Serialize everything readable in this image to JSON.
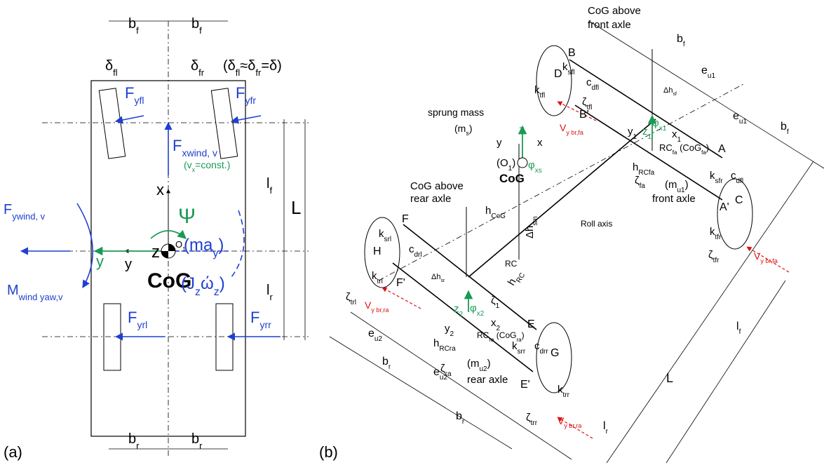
{
  "panel_a": {
    "caption": "(a)",
    "labels": {
      "bf1": [
        "b",
        "f"
      ],
      "bf2": [
        "b",
        "f"
      ],
      "br1": [
        "b",
        "r"
      ],
      "br2": [
        "b",
        "r"
      ],
      "dfl": [
        "δ",
        "fl"
      ],
      "dfr": [
        "δ",
        "fr"
      ],
      "drel": [
        "(δ",
        "fl",
        "≈δ",
        "fr",
        "=δ)"
      ],
      "fyfl": [
        "F",
        "yfl"
      ],
      "fyfr": [
        "F",
        "yfr"
      ],
      "fxw": [
        "F",
        "xwind, v"
      ],
      "vx": [
        "(v",
        "x",
        "=const.)"
      ],
      "x": [
        "x"
      ],
      "psi": [
        "Ψ"
      ],
      "z": [
        "z"
      ],
      "o1": [
        "O",
        "1"
      ],
      "may": [
        "(ma",
        "y",
        ")"
      ],
      "fyw": [
        "F",
        "ywind, v"
      ],
      "yg": [
        "y"
      ],
      "yb": [
        "y"
      ],
      "mw": [
        "M",
        "wind yaw,v"
      ],
      "cog": [
        "CoG"
      ],
      "jz": [
        "(J",
        "z",
        "ώ",
        "z",
        ")"
      ],
      "lf": [
        "l",
        "f"
      ],
      "lr": [
        "l",
        "r"
      ],
      "L": [
        "L"
      ],
      "fyrl": [
        "F",
        "yrl"
      ],
      "fyrr": [
        "F",
        "yrr"
      ]
    }
  },
  "panel_b": {
    "caption": "(b)",
    "labels": {
      "cogf1": [
        "CoG above"
      ],
      "cogf2": [
        "front axle"
      ],
      "bf1": [
        "b",
        "f"
      ],
      "bf2": [
        "b",
        "f"
      ],
      "eu1a": [
        "e",
        "u1"
      ],
      "eu1b": [
        "e",
        "u1"
      ],
      "B": [
        "B"
      ],
      "D": [
        "D"
      ],
      "ksfl": [
        "k",
        "sfl"
      ],
      "cdfl1": [
        "c",
        "dfl"
      ],
      "ktfl": [
        "k",
        "tfl"
      ],
      "ztfl": [
        "ζ",
        "tfl"
      ],
      "Bp": [
        "B'"
      ],
      "dhsf": [
        "Δh",
        "sf"
      ],
      "vfa1": [
        "V",
        "y br,fa"
      ],
      "y1": [
        "y",
        "1"
      ],
      "z1": [
        "z",
        "1"
      ],
      "phx1": [
        "φ",
        "x1"
      ],
      "x1": [
        "x",
        "1"
      ],
      "rcfa": [
        "RC",
        "fa",
        " (CoG",
        "fa",
        ")"
      ],
      "hrcfa": [
        "h",
        "RCfa"
      ],
      "A": [
        "A"
      ],
      "ksfr": [
        "k",
        "sfr"
      ],
      "cdfl2": [
        "c",
        "dfl"
      ],
      "zfa": [
        "ζ",
        "fa"
      ],
      "mu1": [
        "(m",
        "u1",
        ")"
      ],
      "fax": [
        "front axle"
      ],
      "Ap": [
        "A'"
      ],
      "C": [
        "C"
      ],
      "ktfr": [
        "k",
        "tfr"
      ],
      "ztfr": [
        "ζ",
        "tfr"
      ],
      "vfa2": [
        "V",
        "y br,fa"
      ],
      "sm": [
        "sprung mass"
      ],
      "ms": [
        "(m",
        "s",
        ")"
      ],
      "z": [
        "z"
      ],
      "y": [
        "y"
      ],
      "x": [
        "x"
      ],
      "o1": [
        "(O",
        "1",
        ")"
      ],
      "phxs": [
        "φ",
        "xs"
      ],
      "cog": [
        "CoG"
      ],
      "hcog": [
        "h",
        "CoG"
      ],
      "dhsm": [
        "Δh",
        "sm"
      ],
      "roll": [
        "Roll axis"
      ],
      "cogr1": [
        "CoG above"
      ],
      "cogr2": [
        "rear axle"
      ],
      "F": [
        "F"
      ],
      "ksrl": [
        "k",
        "srl"
      ],
      "cdrl": [
        "c",
        "drl"
      ],
      "H": [
        "H"
      ],
      "ktrl": [
        "k",
        "trl"
      ],
      "ztrl": [
        "ζ",
        "trl"
      ],
      "Fp": [
        "F'"
      ],
      "dhsr": [
        "Δh",
        "sr"
      ],
      "rc": [
        "RC"
      ],
      "hrc": [
        "h",
        "RC"
      ],
      "z1b": [
        "ζ",
        "1"
      ],
      "z2": [
        "z",
        "2"
      ],
      "phx2": [
        "φ",
        "x2"
      ],
      "y2": [
        "y",
        "2"
      ],
      "x2": [
        "x",
        "2"
      ],
      "rcra": [
        "RC",
        "ra",
        " (CoG",
        "ra",
        ")"
      ],
      "hrcra": [
        "h",
        "RCra"
      ],
      "E": [
        "E"
      ],
      "ksrr": [
        "k",
        "srr"
      ],
      "cdrr": [
        "c",
        "drr"
      ],
      "zra": [
        "ζ",
        "ra"
      ],
      "mu2": [
        "(m",
        "u2",
        ")"
      ],
      "rax": [
        "rear axle"
      ],
      "G": [
        "G"
      ],
      "Ep": [
        "E'"
      ],
      "ktrr": [
        "k",
        "trr"
      ],
      "ztrr": [
        "ζ",
        "trr"
      ],
      "vra1": [
        "V",
        "y br,ra"
      ],
      "vra2": [
        "V",
        "y br,ra"
      ],
      "eu2a": [
        "e",
        "u2"
      ],
      "eu2b": [
        "e",
        "u2"
      ],
      "br1": [
        "b",
        "r"
      ],
      "br2": [
        "b",
        "r"
      ],
      "lf": [
        "l",
        "f"
      ],
      "L": [
        "L"
      ],
      "lr": [
        "l",
        "r"
      ]
    }
  }
}
